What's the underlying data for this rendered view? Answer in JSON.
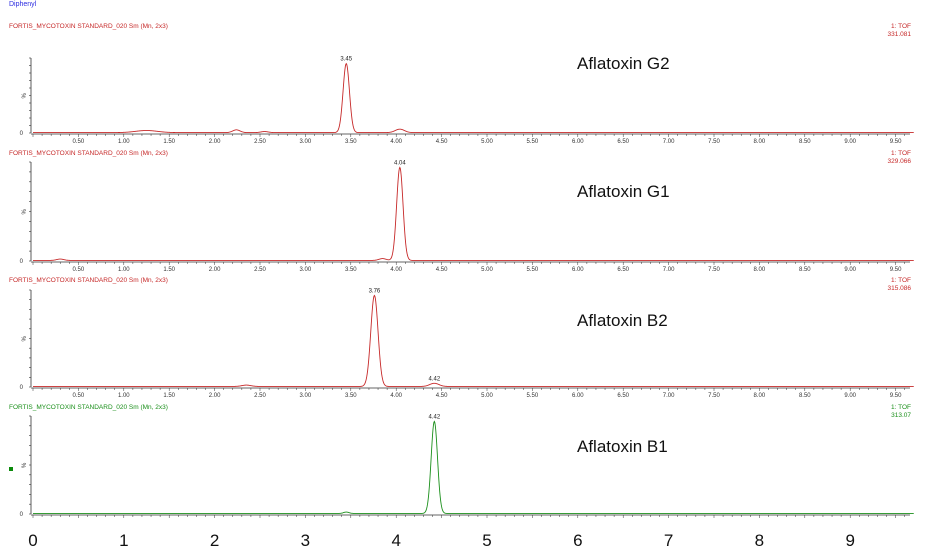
{
  "app_title": "Diphenyl",
  "big_axis_ticks": [
    "0",
    "1",
    "2",
    "3",
    "4",
    "5",
    "6",
    "7",
    "8",
    "9"
  ],
  "chart_data": [
    {
      "type": "line",
      "header": "FORTIS_MYCOTOXIN STANDARD_020 Sm (Mn, 2x3)",
      "detector": "1: TOF",
      "mass": "331.081",
      "label": "Aflatoxin G2",
      "color": "#c62828",
      "ylabel": "%",
      "y_zero_label": "0",
      "xlim": [
        0.0,
        9.7
      ],
      "ylim": [
        0,
        100
      ],
      "x_ticks": [
        "0.50",
        "1.00",
        "1.50",
        "2.00",
        "2.50",
        "3.00",
        "3.50",
        "4.00",
        "4.50",
        "5.00",
        "5.50",
        "6.00",
        "6.50",
        "7.00",
        "7.50",
        "8.00",
        "8.50",
        "9.00",
        "9.50"
      ],
      "peaks": [
        {
          "x": 3.45,
          "height": 100,
          "width": 0.035,
          "label": "3.45"
        },
        {
          "x": 4.04,
          "height": 5,
          "width": 0.05
        },
        {
          "x": 1.25,
          "height": 3,
          "width": 0.12
        },
        {
          "x": 2.24,
          "height": 4,
          "width": 0.04
        },
        {
          "x": 2.55,
          "height": 1.5,
          "width": 0.04
        }
      ]
    },
    {
      "type": "line",
      "header": "FORTIS_MYCOTOXIN STANDARD_020 Sm (Mn, 2x3)",
      "detector": "1: TOF",
      "mass": "329.066",
      "label": "Aflatoxin G1",
      "color": "#c62828",
      "ylabel": "%",
      "y_zero_label": "0",
      "xlim": [
        0.0,
        9.7
      ],
      "ylim": [
        0,
        100
      ],
      "x_ticks": [
        "0.50",
        "1.00",
        "1.50",
        "2.00",
        "2.50",
        "3.00",
        "3.50",
        "4.00",
        "4.50",
        "5.00",
        "5.50",
        "6.00",
        "6.50",
        "7.00",
        "7.50",
        "8.00",
        "8.50",
        "9.00",
        "9.50"
      ],
      "peaks": [
        {
          "x": 4.04,
          "height": 100,
          "width": 0.035,
          "label": "4.04"
        },
        {
          "x": 3.85,
          "height": 2,
          "width": 0.04
        },
        {
          "x": 0.3,
          "height": 1.5,
          "width": 0.04
        }
      ]
    },
    {
      "type": "line",
      "header": "FORTIS_MYCOTOXIN STANDARD_020 Sm (Mn, 2x3)",
      "detector": "1: TOF",
      "mass": "315.086",
      "label": "Aflatoxin B2",
      "color": "#c62828",
      "ylabel": "%",
      "y_zero_label": "0",
      "xlim": [
        0.0,
        9.7
      ],
      "ylim": [
        0,
        100
      ],
      "x_ticks": [
        "0.50",
        "1.00",
        "1.50",
        "2.00",
        "2.50",
        "3.00",
        "3.50",
        "4.00",
        "4.50",
        "5.00",
        "5.50",
        "6.00",
        "6.50",
        "7.00",
        "7.50",
        "8.00",
        "8.50",
        "9.00",
        "9.50"
      ],
      "peaks": [
        {
          "x": 3.76,
          "height": 100,
          "width": 0.04,
          "label": "3.76"
        },
        {
          "x": 4.42,
          "height": 3.5,
          "width": 0.05,
          "label": "4.42"
        },
        {
          "x": 2.35,
          "height": 1.5,
          "width": 0.05
        }
      ]
    },
    {
      "type": "line",
      "header": "FORTIS_MYCOTOXIN STANDARD_020 Sm (Mn, 2x3)",
      "detector": "1: TOF",
      "mass": "313.07",
      "label": "Aflatoxin B1",
      "color": "#1a8f1a",
      "ylabel": "%",
      "y_zero_label": "0",
      "xlim": [
        0.0,
        9.7
      ],
      "ylim": [
        0,
        100
      ],
      "x_ticks": [],
      "peaks": [
        {
          "x": 4.42,
          "height": 100,
          "width": 0.035,
          "label": "4.42"
        },
        {
          "x": 3.45,
          "height": 1.5,
          "width": 0.03
        }
      ]
    }
  ]
}
